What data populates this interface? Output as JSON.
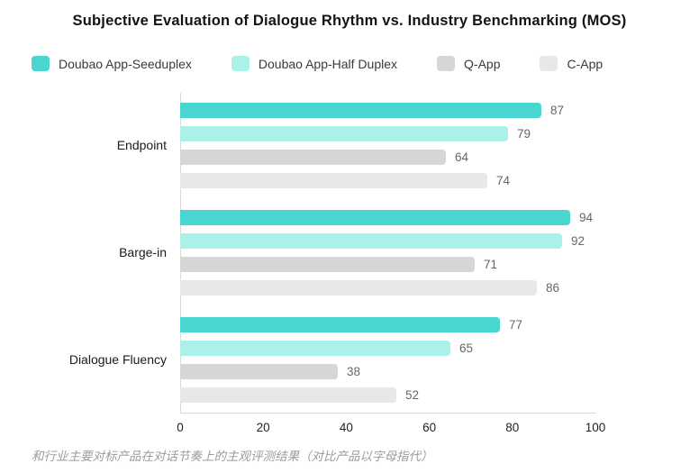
{
  "chart_data": {
    "type": "bar",
    "orientation": "horizontal",
    "title": "Subjective Evaluation of Dialogue Rhythm vs. Industry Benchmarking (MOS)",
    "categories": [
      "Endpoint",
      "Barge-in",
      "Dialogue Fluency"
    ],
    "series": [
      {
        "name": "Doubao App-Seeduplex",
        "color": "#49D6D0",
        "values": [
          87,
          94,
          77
        ]
      },
      {
        "name": "Doubao App-Half Duplex",
        "color": "#ABF0E9",
        "values": [
          79,
          92,
          65
        ]
      },
      {
        "name": "Q-App",
        "color": "#D6D6D5",
        "values": [
          64,
          71,
          38
        ]
      },
      {
        "name": "C-App",
        "color": "#E8E8E7",
        "values": [
          74,
          86,
          52
        ]
      }
    ],
    "xlim": [
      0,
      100
    ],
    "x_ticks": [
      "0",
      "20",
      "40",
      "60",
      "80",
      "100"
    ],
    "value_labels_shown": true,
    "legend_position": "top",
    "grid": false,
    "axis_color": "#d9d9d9",
    "caption": "和行业主要对标产品在对话节奏上的主观评测结果（对比产品以字母指代）"
  }
}
